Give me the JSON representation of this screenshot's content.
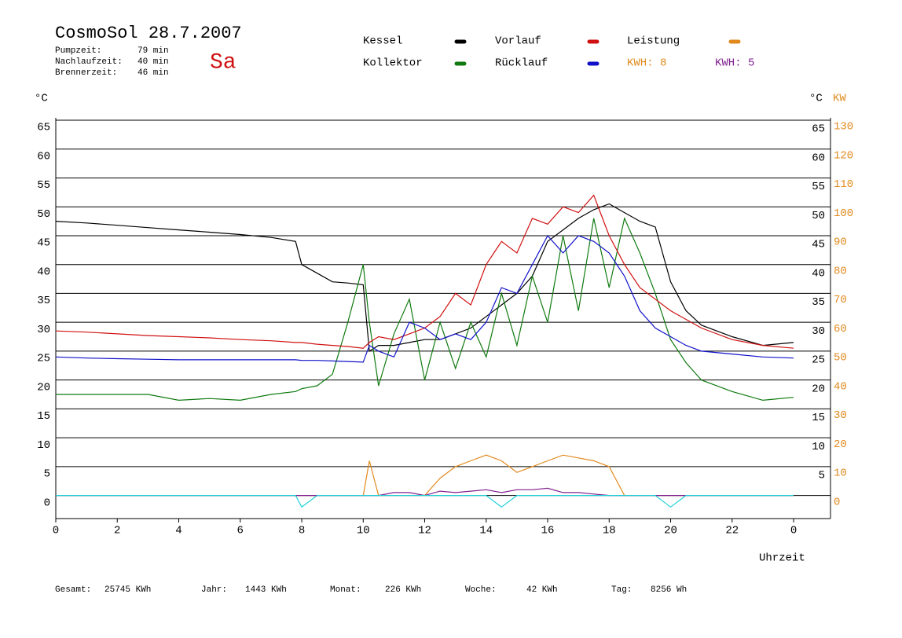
{
  "chart_data": {
    "type": "line",
    "title": "CosmoSol 28.7.2007",
    "day": "Sa",
    "info": [
      {
        "label": "Pumpzeit:",
        "value": "79 min"
      },
      {
        "label": "Nachlaufzeit:",
        "value": "40 min"
      },
      {
        "label": "Brennerzeit:",
        "value": "46 min"
      }
    ],
    "y_unit": "°C",
    "y_right_unit": "°C",
    "y2_unit": "KW",
    "x_label": "Uhrzeit",
    "legend_extra": {
      "text": "KWH: 8",
      "color": "#e08a1e"
    },
    "footer": [
      {
        "label": "Gesamt:",
        "value": "25745 KWh"
      },
      {
        "label": "Jahr:",
        "value": "1443 KWh"
      },
      {
        "label": "Monat:",
        "value": "226 KWh"
      },
      {
        "label": "Woche:",
        "value": "42 KWh"
      },
      {
        "label": "Tag:",
        "value": "8256 Wh"
      }
    ],
    "xlim": [
      0,
      25.2
    ],
    "xticks": [
      0,
      2,
      4,
      6,
      8,
      10,
      12,
      14,
      16,
      18,
      20,
      22,
      {
        "value": 24,
        "label": "0"
      }
    ],
    "ylim": [
      -4,
      65
    ],
    "yticks": [
      0,
      5,
      10,
      15,
      20,
      25,
      30,
      35,
      40,
      45,
      50,
      55,
      60,
      65
    ],
    "y_right_ticks": [
      5,
      10,
      15,
      20,
      25,
      30,
      35,
      40,
      45,
      50,
      55,
      60,
      65
    ],
    "y2lim": [
      -8,
      130
    ],
    "y2ticks": [
      0,
      10,
      20,
      30,
      40,
      50,
      60,
      70,
      80,
      90,
      100,
      110,
      120,
      130
    ],
    "grid": true,
    "x": [
      0,
      1,
      2,
      3,
      4,
      5,
      6,
      7,
      7.8,
      8,
      8.5,
      9,
      9.5,
      10,
      10.2,
      10.5,
      11,
      11.5,
      12,
      12.5,
      13,
      13.5,
      14,
      14.5,
      15,
      15.5,
      16,
      16.5,
      17,
      17.5,
      18,
      18.5,
      19,
      19.5,
      20,
      20.5,
      21,
      22,
      23,
      24
    ],
    "series": [
      {
        "name": "Kessel",
        "color": "#000000",
        "values": [
          47.5,
          47.2,
          46.8,
          46.4,
          46,
          45.6,
          45.2,
          44.7,
          44,
          40,
          38.5,
          37,
          36.8,
          36.5,
          25,
          26,
          26,
          26.5,
          27,
          27,
          28,
          29,
          31,
          33,
          35,
          38,
          44,
          46,
          48,
          49.5,
          50.5,
          49,
          47.5,
          46.5,
          37,
          32,
          29.5,
          27.5,
          26,
          26.5
        ]
      },
      {
        "name": "Kollektor",
        "color": "#107a10",
        "values": [
          17.5,
          17.5,
          17.5,
          17.5,
          16.5,
          16.8,
          16.5,
          17.5,
          18,
          18.5,
          19,
          21,
          30,
          40,
          30,
          19,
          28,
          34,
          20,
          30,
          22,
          30,
          24,
          35,
          26,
          38,
          30,
          45,
          32,
          48,
          36,
          48,
          42,
          35,
          27,
          23,
          20,
          18,
          16.5,
          17
        ]
      },
      {
        "name": "Vorlauf",
        "color": "#d01010",
        "values": [
          28.5,
          28.3,
          28,
          27.7,
          27.5,
          27.3,
          27,
          26.8,
          26.5,
          26.5,
          26.2,
          26,
          25.8,
          25.5,
          26.5,
          27.5,
          27,
          28,
          29,
          31,
          35,
          33,
          40,
          44,
          42,
          48,
          47,
          50,
          49,
          52,
          45,
          40,
          36,
          34,
          32,
          30.5,
          29,
          27,
          26,
          25.5
        ]
      },
      {
        "name": "Rücklauf",
        "color": "#1010c8",
        "values": [
          24,
          23.8,
          23.7,
          23.6,
          23.5,
          23.5,
          23.5,
          23.5,
          23.5,
          23.4,
          23.4,
          23.3,
          23.2,
          23.1,
          26,
          25,
          24,
          30,
          29,
          27,
          28,
          27,
          30,
          36,
          35,
          40,
          45,
          42,
          45,
          44,
          42,
          38,
          32,
          29,
          27.5,
          26,
          25,
          24.5,
          24,
          23.8
        ]
      },
      {
        "name": "Leistung",
        "color": "#e08a1e",
        "axis": "y2",
        "values": [
          0,
          0,
          0,
          0,
          0,
          0,
          0,
          0,
          0,
          0,
          0,
          0,
          0,
          0,
          12,
          0,
          0,
          0,
          0,
          6,
          10,
          12,
          14,
          12,
          8,
          10,
          12,
          14,
          13,
          12,
          10,
          0,
          0,
          0,
          0,
          0,
          0,
          0,
          0,
          0
        ]
      },
      {
        "name": "KWH: 5",
        "color": "#802090",
        "axis": "y2",
        "values": [
          0,
          0,
          0,
          0,
          0,
          0,
          0,
          0,
          0,
          0,
          0,
          0,
          0,
          0,
          0,
          0,
          1,
          1,
          0,
          1.5,
          1,
          1.5,
          2,
          1,
          2,
          2,
          2.5,
          1,
          1,
          0.5,
          0,
          0,
          0,
          0,
          0,
          0,
          0,
          0,
          0,
          0
        ]
      },
      {
        "color": "#20d0d8",
        "values": [
          0,
          0,
          0,
          0,
          0,
          0,
          0,
          0,
          0,
          -2,
          0,
          0,
          0,
          0,
          0,
          0,
          0,
          0,
          0,
          0,
          0,
          0,
          0,
          -2,
          0,
          0,
          0,
          0,
          0,
          0,
          0,
          0,
          0,
          0,
          -2,
          0,
          0,
          0,
          0,
          0
        ]
      }
    ]
  }
}
